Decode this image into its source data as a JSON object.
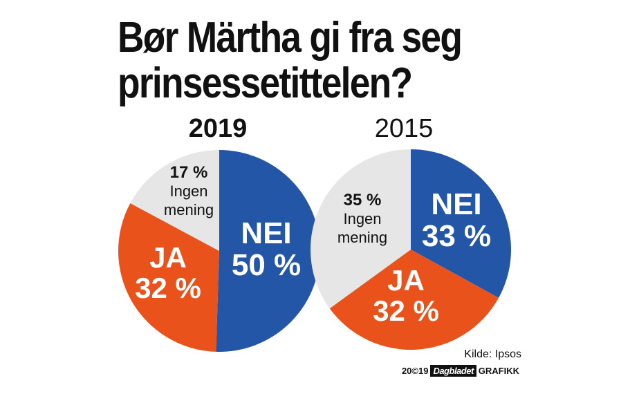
{
  "title_line1": "Bør Märtha gi fra seg",
  "title_line2": "prinsessetittelen?",
  "source": "Kilde: Ipsos",
  "credit": {
    "year": "20©19",
    "brand": "Dagbladet",
    "suffix": "GRAFIKK"
  },
  "colors": {
    "nei": "#2356a6",
    "ja": "#e9521a",
    "ingen": "#e6e6e6"
  },
  "chart_data": [
    {
      "type": "pie",
      "title": "2019",
      "slices": [
        {
          "key": "nei",
          "label": "NEI",
          "value": 50,
          "value_text": "50 %"
        },
        {
          "key": "ja",
          "label": "JA",
          "value": 32,
          "value_text": "32 %"
        },
        {
          "key": "ingen",
          "label": "Ingen mening",
          "value": 17,
          "value_text": "17 %"
        }
      ]
    },
    {
      "type": "pie",
      "title": "2015",
      "slices": [
        {
          "key": "nei",
          "label": "NEI",
          "value": 33,
          "value_text": "33 %"
        },
        {
          "key": "ja",
          "label": "JA",
          "value": 32,
          "value_text": "32 %"
        },
        {
          "key": "ingen",
          "label": "Ingen mening",
          "value": 35,
          "value_text": "35 %"
        }
      ]
    }
  ]
}
